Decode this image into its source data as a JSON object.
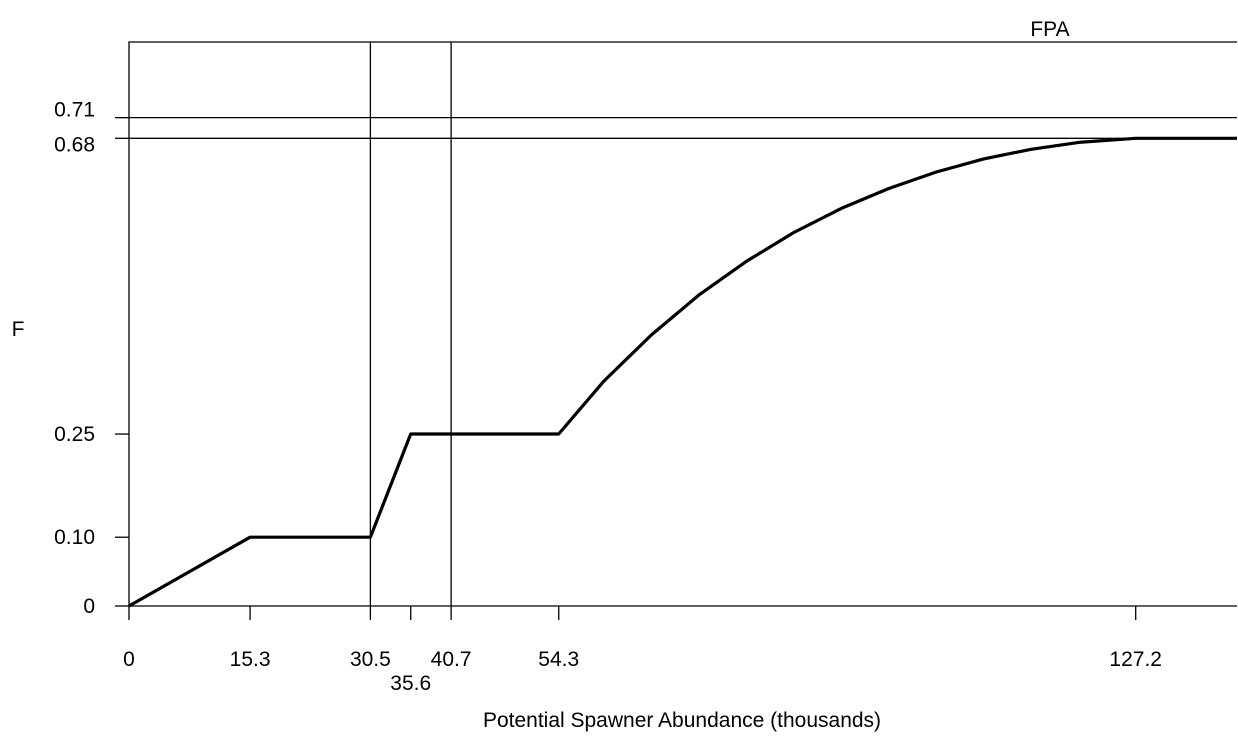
{
  "chart_data": {
    "type": "line",
    "title": "FPA",
    "xlabel": "Potential Spawner Abundance (thousands)",
    "ylabel": "F",
    "xlim": [
      0,
      140
    ],
    "ylim": [
      0,
      0.82
    ],
    "grid": false,
    "legend": "none",
    "x_ticks": [
      {
        "value": 0,
        "label": "0"
      },
      {
        "value": 15.3,
        "label": "15.3"
      },
      {
        "value": 30.5,
        "label": "30.5"
      },
      {
        "value": 35.6,
        "label": "35.6"
      },
      {
        "value": 40.7,
        "label": "40.7"
      },
      {
        "value": 54.3,
        "label": "54.3"
      },
      {
        "value": 127.2,
        "label": "127.2"
      }
    ],
    "y_ticks": [
      {
        "value": 0,
        "label": "0"
      },
      {
        "value": 0.1,
        "label": "0.10"
      },
      {
        "value": 0.25,
        "label": "0.25"
      },
      {
        "value": 0.68,
        "label": "0.68"
      },
      {
        "value": 0.71,
        "label": "0.71"
      }
    ],
    "reference_lines": {
      "vertical": [
        30.5,
        40.7
      ],
      "horizontal": [
        0.68,
        0.71
      ]
    },
    "series": [
      {
        "x": [
          0,
          15.3,
          30.5,
          35.6,
          54.3,
          60,
          66,
          72,
          78,
          84,
          90,
          96,
          102,
          108,
          114,
          120,
          127.2,
          140
        ],
        "y": [
          0,
          0.1,
          0.1,
          0.25,
          0.25,
          0.327,
          0.394,
          0.452,
          0.501,
          0.543,
          0.578,
          0.607,
          0.631,
          0.65,
          0.664,
          0.674,
          0.68,
          0.68
        ]
      }
    ]
  }
}
